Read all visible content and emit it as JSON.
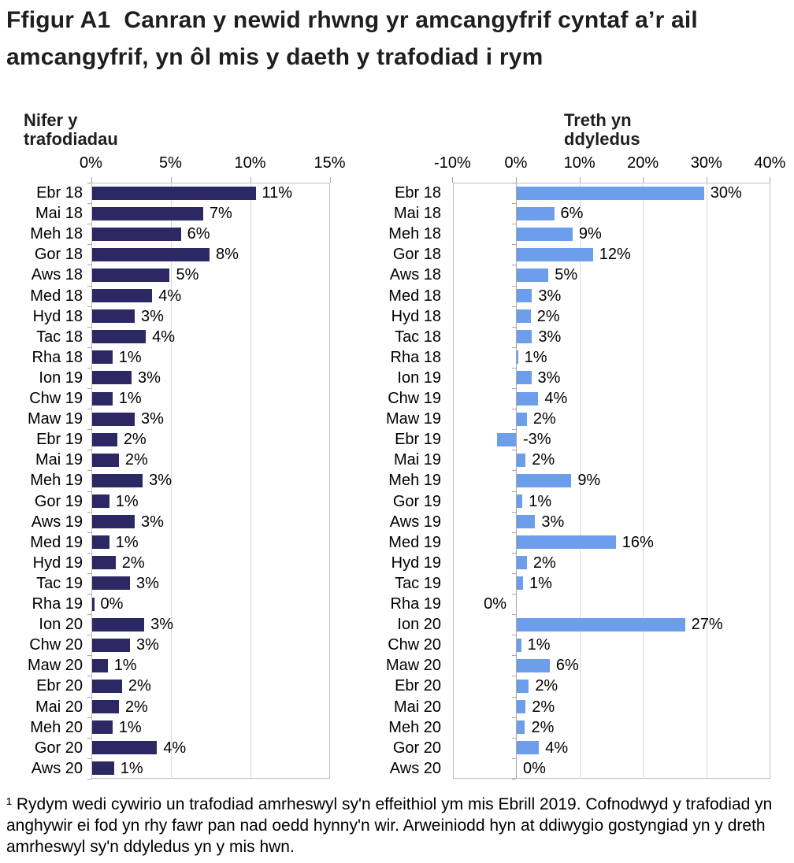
{
  "title": "Ffigur A1  Canran y newid rhwng yr amcangyfrif cyntaf a’r ail amcangyfrif, yn ôl mis y daeth y trafodiad i rym",
  "footnote": "¹ Rydym wedi cywirio un trafodiad amrheswyl sy'n effeithiol ym mis Ebrill 2019. Cofnodwyd y trafodiad yn anghywir ei fod yn rhy fawr pan nad oedd hynny'n wir. Arweiniodd hyn at ddiwygio gostyngiad yn y dreth amrheswyl sy'n ddyledus yn y mis hwn.",
  "colors": {
    "navy_bar": "#2B2864",
    "blue_bar": "#6D9EEB",
    "gridline": "#D9D9D9",
    "plot_border": "#BFBFBF",
    "axis": "#A6A6A6",
    "title_text": "#1F1F1F",
    "body_text": "#000000"
  },
  "chart_data": [
    {
      "type": "bar",
      "orientation": "horizontal",
      "title": "Nifer y trafodiadau",
      "xlabel": "",
      "ylabel": "",
      "xlim": [
        0,
        15
      ],
      "grid": true,
      "legend": "none",
      "bar_color": "#2B2864",
      "xticks": [
        {
          "v": 0,
          "label": "0%"
        },
        {
          "v": 5,
          "label": "5%"
        },
        {
          "v": 10,
          "label": "10%"
        },
        {
          "v": 15,
          "label": "15%"
        }
      ],
      "categories": [
        "Ebr 18",
        "Mai 18",
        "Meh 18",
        "Gor 18",
        "Aws 18",
        "Med 18",
        "Hyd 18",
        "Tac 18",
        "Rha 18",
        "Ion 19",
        "Chw 19",
        "Maw 19",
        "Ebr 19",
        "Mai 19",
        "Meh 19",
        "Gor 19",
        "Aws 19",
        "Med 19",
        "Hyd 19",
        "Tac 19",
        "Rha 19",
        "Ion 20",
        "Chw 20",
        "Maw 20",
        "Ebr 20",
        "Mai 20",
        "Meh 20",
        "Gor 20",
        "Aws 20"
      ],
      "rows": [
        {
          "cat": "Ebr 18",
          "label": "11%",
          "value": 11,
          "bar": 10.3
        },
        {
          "cat": "Mai 18",
          "label": "7%",
          "value": 7,
          "bar": 7.0
        },
        {
          "cat": "Meh 18",
          "label": "6%",
          "value": 6,
          "bar": 5.6
        },
        {
          "cat": "Gor 18",
          "label": "8%",
          "value": 8,
          "bar": 7.4
        },
        {
          "cat": "Aws 18",
          "label": "5%",
          "value": 5,
          "bar": 4.9
        },
        {
          "cat": "Med 18",
          "label": "4%",
          "value": 4,
          "bar": 3.8
        },
        {
          "cat": "Hyd 18",
          "label": "3%",
          "value": 3,
          "bar": 2.7
        },
        {
          "cat": "Tac 18",
          "label": "4%",
          "value": 4,
          "bar": 3.4
        },
        {
          "cat": "Rha 18",
          "label": "1%",
          "value": 1,
          "bar": 1.3
        },
        {
          "cat": "Ion 19",
          "label": "3%",
          "value": 3,
          "bar": 2.5
        },
        {
          "cat": "Chw 19",
          "label": "1%",
          "value": 1,
          "bar": 1.3
        },
        {
          "cat": "Maw 19",
          "label": "3%",
          "value": 3,
          "bar": 2.7
        },
        {
          "cat": "Ebr 19",
          "label": "2%",
          "value": 2,
          "bar": 1.6
        },
        {
          "cat": "Mai 19",
          "label": "2%",
          "value": 2,
          "bar": 1.7
        },
        {
          "cat": "Meh 19",
          "label": "3%",
          "value": 3,
          "bar": 3.2
        },
        {
          "cat": "Gor 19",
          "label": "1%",
          "value": 1,
          "bar": 1.1
        },
        {
          "cat": "Aws 19",
          "label": "3%",
          "value": 3,
          "bar": 2.7
        },
        {
          "cat": "Med 19",
          "label": "1%",
          "value": 1,
          "bar": 1.1
        },
        {
          "cat": "Hyd 19",
          "label": "2%",
          "value": 2,
          "bar": 1.5
        },
        {
          "cat": "Tac 19",
          "label": "3%",
          "value": 3,
          "bar": 2.4
        },
        {
          "cat": "Rha 19",
          "label": "0%",
          "value": 0,
          "bar": 0.15
        },
        {
          "cat": "Ion 20",
          "label": "3%",
          "value": 3,
          "bar": 3.3
        },
        {
          "cat": "Chw 20",
          "label": "3%",
          "value": 3,
          "bar": 2.4
        },
        {
          "cat": "Maw 20",
          "label": "1%",
          "value": 1,
          "bar": 1.0
        },
        {
          "cat": "Ebr 20",
          "label": "2%",
          "value": 2,
          "bar": 1.9
        },
        {
          "cat": "Mai 20",
          "label": "2%",
          "value": 2,
          "bar": 1.7
        },
        {
          "cat": "Meh 20",
          "label": "1%",
          "value": 1,
          "bar": 1.3
        },
        {
          "cat": "Gor 20",
          "label": "4%",
          "value": 4,
          "bar": 4.1
        },
        {
          "cat": "Aws 20",
          "label": "1%",
          "value": 1,
          "bar": 1.4
        }
      ]
    },
    {
      "type": "bar",
      "orientation": "horizontal",
      "title": "Treth yn ddyledus",
      "xlabel": "",
      "ylabel": "",
      "xlim": [
        -10,
        40
      ],
      "grid": true,
      "legend": "none",
      "bar_color": "#6D9EEB",
      "xticks": [
        {
          "v": -10,
          "label": "-10%"
        },
        {
          "v": 0,
          "label": "0%"
        },
        {
          "v": 10,
          "label": "10%"
        },
        {
          "v": 20,
          "label": "20%"
        },
        {
          "v": 30,
          "label": "30%"
        },
        {
          "v": 40,
          "label": "40%"
        }
      ],
      "categories": [
        "Ebr 18",
        "Mai 18",
        "Meh 18",
        "Gor 18",
        "Aws 18",
        "Med 18",
        "Hyd 18",
        "Tac 18",
        "Rha 18",
        "Ion 19",
        "Chw 19",
        "Maw 19",
        "Ebr 19",
        "Mai 19",
        "Meh 19",
        "Gor 19",
        "Aws 19",
        "Med 19",
        "Hyd 19",
        "Tac 19",
        "Rha 19",
        "Ion 20",
        "Chw 20",
        "Maw 20",
        "Ebr 20",
        "Mai 20",
        "Meh 20",
        "Gor 20",
        "Aws 20"
      ],
      "rows": [
        {
          "cat": "Ebr 18",
          "label": "30%",
          "value": 30,
          "bar": 29.5
        },
        {
          "cat": "Mai 18",
          "label": "6%",
          "value": 6,
          "bar": 5.9
        },
        {
          "cat": "Meh 18",
          "label": "9%",
          "value": 9,
          "bar": 8.8
        },
        {
          "cat": "Gor 18",
          "label": "12%",
          "value": 12,
          "bar": 12.0
        },
        {
          "cat": "Aws 18",
          "label": "5%",
          "value": 5,
          "bar": 5.0
        },
        {
          "cat": "Med 18",
          "label": "3%",
          "value": 3,
          "bar": 2.4
        },
        {
          "cat": "Hyd 18",
          "label": "2%",
          "value": 2,
          "bar": 2.2
        },
        {
          "cat": "Tac 18",
          "label": "3%",
          "value": 3,
          "bar": 2.4
        },
        {
          "cat": "Rha 18",
          "label": "1%",
          "value": 1,
          "bar": 0.2
        },
        {
          "cat": "Ion 19",
          "label": "3%",
          "value": 3,
          "bar": 2.3
        },
        {
          "cat": "Chw 19",
          "label": "4%",
          "value": 4,
          "bar": 3.4
        },
        {
          "cat": "Maw 19",
          "label": "2%",
          "value": 2,
          "bar": 1.6
        },
        {
          "cat": "Ebr 19",
          "label": "-3%",
          "value": -3,
          "bar": -3.0
        },
        {
          "cat": "Mai 19",
          "label": "2%",
          "value": 2,
          "bar": 1.4
        },
        {
          "cat": "Meh 19",
          "label": "9%",
          "value": 9,
          "bar": 8.6
        },
        {
          "cat": "Gor 19",
          "label": "1%",
          "value": 1,
          "bar": 0.9
        },
        {
          "cat": "Aws 19",
          "label": "3%",
          "value": 3,
          "bar": 2.9
        },
        {
          "cat": "Med 19",
          "label": "16%",
          "value": 16,
          "bar": 15.6
        },
        {
          "cat": "Hyd 19",
          "label": "2%",
          "value": 2,
          "bar": 1.6
        },
        {
          "cat": "Tac 19",
          "label": "1%",
          "value": 1,
          "bar": 1.0
        },
        {
          "cat": "Rha 19",
          "label": "0%",
          "value": 0,
          "bar": 0,
          "label_side": "left"
        },
        {
          "cat": "Ion 20",
          "label": "27%",
          "value": 27,
          "bar": 26.5
        },
        {
          "cat": "Chw 20",
          "label": "1%",
          "value": 1,
          "bar": 0.7
        },
        {
          "cat": "Maw 20",
          "label": "6%",
          "value": 6,
          "bar": 5.2
        },
        {
          "cat": "Ebr 20",
          "label": "2%",
          "value": 2,
          "bar": 1.9
        },
        {
          "cat": "Mai 20",
          "label": "2%",
          "value": 2,
          "bar": 1.4
        },
        {
          "cat": "Meh 20",
          "label": "2%",
          "value": 2,
          "bar": 1.3
        },
        {
          "cat": "Gor 20",
          "label": "4%",
          "value": 4,
          "bar": 3.5
        },
        {
          "cat": "Aws 20",
          "label": "0%",
          "value": 0,
          "bar": 0
        }
      ]
    }
  ]
}
